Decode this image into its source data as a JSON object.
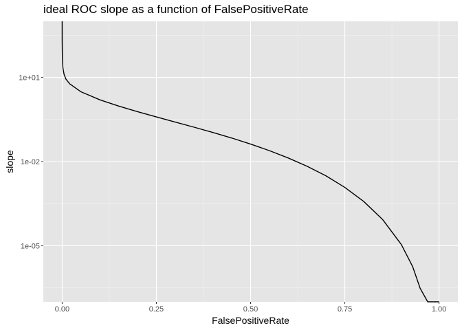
{
  "chart_data": {
    "type": "line",
    "title": "ideal ROC slope as a function of FalsePositiveRate",
    "xlabel": "FalsePositiveRate",
    "ylabel": "slope",
    "x_scale": "linear",
    "y_scale": "log10",
    "xlim": [
      -0.05,
      1.05
    ],
    "ylim": [
      1e-07,
      1000.0
    ],
    "x_ticks": [
      0.0,
      0.25,
      0.5,
      0.75,
      1.0
    ],
    "x_tick_labels": [
      "0.00",
      "0.25",
      "0.50",
      "0.75",
      "1.00"
    ],
    "y_ticks": [
      10.0,
      0.01,
      1e-05
    ],
    "y_tick_labels": [
      "1e+01",
      "1e-02",
      "1e-05"
    ],
    "grid": true,
    "legend": "none",
    "series": [
      {
        "x": [
          0.0,
          0.0001,
          0.0005,
          0.001,
          0.002,
          0.005,
          0.01,
          0.02,
          0.05,
          0.1,
          0.15,
          0.2,
          0.25,
          0.3,
          0.35,
          0.4,
          0.45,
          0.5,
          0.55,
          0.6,
          0.65,
          0.7,
          0.75,
          0.8,
          0.85,
          0.9,
          0.93,
          0.95,
          0.97,
          0.98,
          0.99,
          0.995,
          0.998,
          0.999,
          0.9995,
          0.9998,
          0.9999,
          1.0
        ],
        "y": [
          1000,
          200,
          60,
          35,
          22,
          13,
          8.7,
          5.9,
          3.07,
          1.59,
          0.95,
          0.6,
          0.39,
          0.255,
          0.168,
          0.109,
          0.069,
          0.042,
          0.0245,
          0.0134,
          0.0068,
          0.0031,
          0.0012,
          0.00038,
          8.7e-05,
          1.1e-05,
          1.8e-06,
          3e-07,
          1e-07,
          1e-07,
          1e-07,
          1e-07,
          1e-07,
          1e-07,
          1e-07,
          1e-07,
          1e-07,
          1e-07
        ]
      }
    ]
  }
}
